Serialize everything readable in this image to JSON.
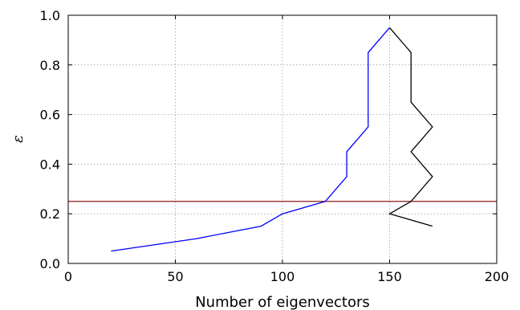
{
  "chart_data": {
    "type": "line",
    "xlabel": "Number of eigenvectors",
    "ylabel": "ε",
    "xlim": [
      0,
      200
    ],
    "ylim": [
      0.0,
      1.0
    ],
    "xticks": [
      "0",
      "50",
      "100",
      "150",
      "200"
    ],
    "yticks": [
      "0.0",
      "0.2",
      "0.4",
      "0.6",
      "0.8",
      "1.0"
    ],
    "grid": true,
    "series": [
      {
        "color": "#0000ff",
        "x": [
          20,
          60,
          90,
          100,
          120,
          130,
          130,
          140,
          140,
          150
        ],
        "y": [
          0.05,
          0.1,
          0.15,
          0.2,
          0.25,
          0.35,
          0.45,
          0.55,
          0.85,
          0.95
        ]
      },
      {
        "color": "#000000",
        "x": [
          150,
          160,
          160,
          170,
          160,
          170,
          160,
          150,
          170
        ],
        "y": [
          0.95,
          0.85,
          0.65,
          0.55,
          0.45,
          0.35,
          0.25,
          0.2,
          0.15
        ]
      }
    ],
    "hline": {
      "y": 0.25,
      "color": "#8b1a1a"
    }
  }
}
